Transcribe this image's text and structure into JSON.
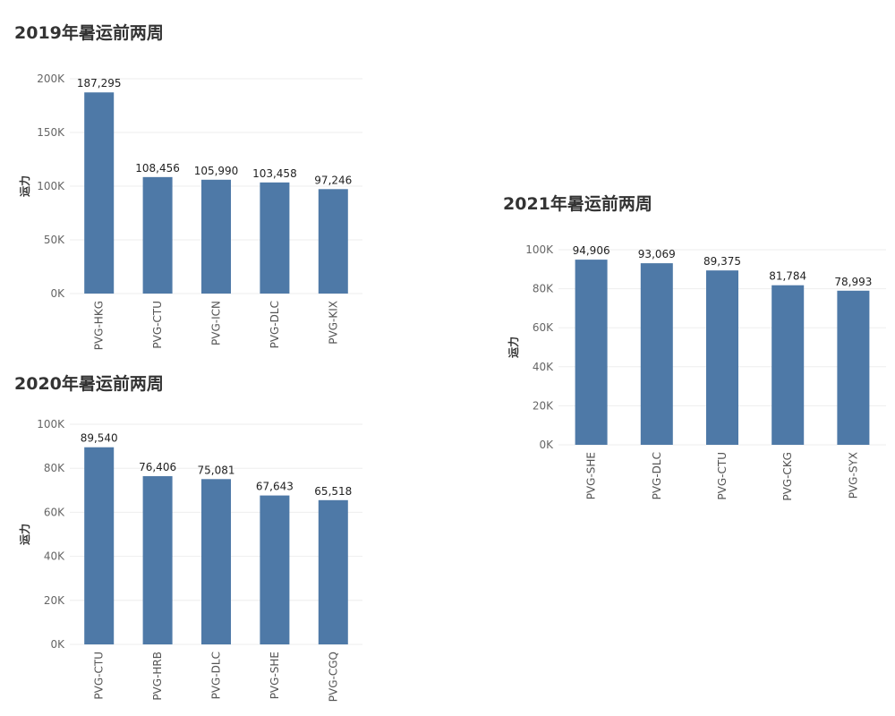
{
  "chart_data": [
    {
      "type": "bar",
      "title": "2019年暑运前两周",
      "ylabel": "运力",
      "categories": [
        "PVG-HKG",
        "PVG-CTU",
        "PVG-ICN",
        "PVG-DLC",
        "PVG-KIX"
      ],
      "values": [
        187295,
        108456,
        105990,
        103458,
        97246
      ],
      "value_labels": [
        "187,295",
        "108,456",
        "105,990",
        "103,458",
        "97,246"
      ],
      "yticks": [
        0,
        50000,
        100000,
        150000,
        200000
      ],
      "ytick_labels": [
        "0K",
        "50K",
        "100K",
        "150K",
        "200K"
      ],
      "ylim": [
        0,
        200000
      ],
      "bar_color": "#4e79a7",
      "grid": true
    },
    {
      "type": "bar",
      "title": "2020年暑运前两周",
      "ylabel": "运力",
      "categories": [
        "PVG-CTU",
        "PVG-HRB",
        "PVG-DLC",
        "PVG-SHE",
        "PVG-CGQ"
      ],
      "values": [
        89540,
        76406,
        75081,
        67643,
        65518
      ],
      "value_labels": [
        "89,540",
        "76,406",
        "75,081",
        "67,643",
        "65,518"
      ],
      "yticks": [
        0,
        20000,
        40000,
        60000,
        80000,
        100000
      ],
      "ytick_labels": [
        "0K",
        "20K",
        "40K",
        "60K",
        "80K",
        "100K"
      ],
      "ylim": [
        0,
        100000
      ],
      "bar_color": "#4e79a7",
      "grid": true
    },
    {
      "type": "bar",
      "title": "2021年暑运前两周",
      "ylabel": "运力",
      "categories": [
        "PVG-SHE",
        "PVG-DLC",
        "PVG-CTU",
        "PVG-CKG",
        "PVG-SYX"
      ],
      "values": [
        94906,
        93069,
        89375,
        81784,
        78993
      ],
      "value_labels": [
        "94,906",
        "93,069",
        "89,375",
        "81,784",
        "78,993"
      ],
      "yticks": [
        0,
        20000,
        40000,
        60000,
        80000,
        100000
      ],
      "ytick_labels": [
        "0K",
        "20K",
        "40K",
        "60K",
        "80K",
        "100K"
      ],
      "ylim": [
        0,
        100000
      ],
      "bar_color": "#4e79a7",
      "grid": true
    }
  ]
}
